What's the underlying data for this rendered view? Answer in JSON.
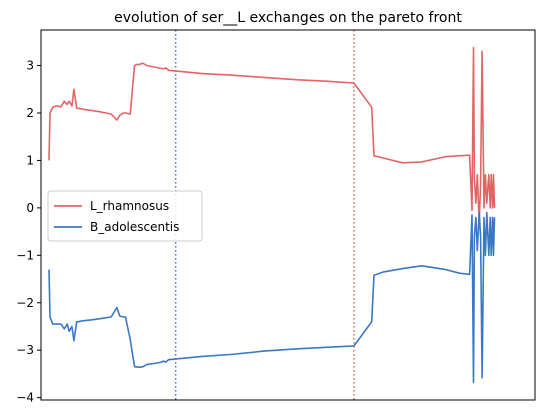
{
  "chart_data": {
    "type": "line",
    "title": "evolution of ser__L exchanges on the pareto front",
    "xlabel": "",
    "ylabel": "",
    "xlim": [
      0,
      100
    ],
    "ylim": [
      -4.05,
      3.75
    ],
    "yticks": [
      3,
      2,
      1,
      0,
      -1,
      -2,
      -3,
      -4
    ],
    "ytick_labels": [
      "3",
      "2",
      "1",
      "0",
      "−1",
      "−2",
      "−3",
      "−4"
    ],
    "grid": false,
    "legend_position": "center-left",
    "vlines": [
      {
        "x": 26.5,
        "color": "#3a78c3",
        "style": "dotted"
      },
      {
        "x": 63.8,
        "color": "#e06666",
        "style": "dotted"
      }
    ],
    "series": [
      {
        "name": "L_rhamnosus",
        "color": "#e06666",
        "x": [
          0,
          0.2,
          0.8,
          1.5,
          2.5,
          3.2,
          3.8,
          4.2,
          4.8,
          5.2,
          5.8,
          6.2,
          7,
          9,
          11,
          13,
          14.2,
          14.8,
          15.5,
          16,
          17,
          17.5,
          17.9,
          18.3,
          18.8,
          19.6,
          20.5,
          22,
          23.5,
          24,
          24.4,
          25,
          28,
          32,
          38,
          45,
          52,
          58,
          63.8,
          67.5,
          68,
          70,
          74,
          78,
          83,
          86,
          88,
          88.5,
          88.8,
          89,
          89.3,
          89.6,
          90,
          90.3,
          90.6,
          91,
          91.3,
          91.6,
          92,
          92.3,
          92.5,
          92.8,
          93,
          93.2
        ],
        "y": [
          1.0,
          2.0,
          2.12,
          2.15,
          2.13,
          2.25,
          2.18,
          2.25,
          2.15,
          2.5,
          2.1,
          2.1,
          2.08,
          2.05,
          2.02,
          1.98,
          1.85,
          1.95,
          2.0,
          2.0,
          1.98,
          2.55,
          3.0,
          3.02,
          3.02,
          3.05,
          3.0,
          2.97,
          2.94,
          2.93,
          2.95,
          2.9,
          2.87,
          2.83,
          2.8,
          2.75,
          2.7,
          2.67,
          2.63,
          2.12,
          1.1,
          1.05,
          0.95,
          0.97,
          1.08,
          1.1,
          1.11,
          -0.05,
          3.38,
          0.6,
          0.1,
          0.7,
          -0.3,
          0.5,
          3.3,
          0.0,
          0.7,
          0.1,
          0.7,
          0.0,
          0.7,
          0.0,
          0.7,
          0.0
        ]
      },
      {
        "name": "B_adolescentis",
        "color": "#3a78c3",
        "x": [
          0,
          0.2,
          0.8,
          1.5,
          2.5,
          3.2,
          3.8,
          4.2,
          4.8,
          5.2,
          5.8,
          6.2,
          7,
          9,
          11,
          13,
          14.2,
          14.8,
          15.5,
          16,
          17,
          17.5,
          17.9,
          18.3,
          18.8,
          19.6,
          20.5,
          22,
          23.5,
          24,
          24.4,
          25,
          28,
          32,
          38,
          45,
          52,
          58,
          63.8,
          67.5,
          68,
          70,
          74,
          78,
          83,
          86,
          88,
          88.5,
          88.8,
          89,
          89.3,
          89.6,
          90,
          90.3,
          90.6,
          91,
          91.3,
          91.6,
          92,
          92.3,
          92.5,
          92.8,
          93,
          93.2
        ],
        "y": [
          -1.3,
          -2.3,
          -2.45,
          -2.45,
          -2.45,
          -2.55,
          -2.45,
          -2.6,
          -2.5,
          -2.8,
          -2.4,
          -2.4,
          -2.38,
          -2.36,
          -2.33,
          -2.3,
          -2.1,
          -2.28,
          -2.3,
          -2.3,
          -2.78,
          -3.1,
          -3.35,
          -3.35,
          -3.36,
          -3.35,
          -3.3,
          -3.28,
          -3.25,
          -3.23,
          -3.25,
          -3.2,
          -3.17,
          -3.13,
          -3.09,
          -3.02,
          -2.97,
          -2.94,
          -2.91,
          -2.4,
          -1.42,
          -1.35,
          -1.28,
          -1.22,
          -1.3,
          -1.38,
          -1.4,
          -0.15,
          -3.68,
          -0.6,
          -0.2,
          -0.9,
          -0.1,
          -0.6,
          -3.58,
          -0.2,
          -1.0,
          -0.1,
          -1.0,
          -0.2,
          -1.0,
          -0.2,
          -1.0,
          -0.2
        ]
      }
    ]
  }
}
